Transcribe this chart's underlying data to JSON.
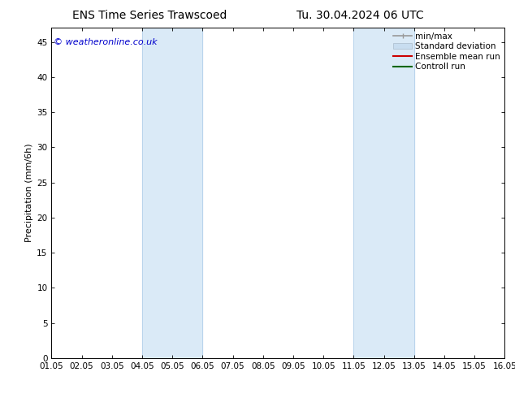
{
  "title_left": "ENS Time Series Trawscoed",
  "title_right": "Tu. 30.04.2024 06 UTC",
  "ylabel": "Precipitation (mm/6h)",
  "xlim": [
    0,
    15
  ],
  "ylim": [
    0,
    47
  ],
  "yticks": [
    0,
    5,
    10,
    15,
    20,
    25,
    30,
    35,
    40,
    45
  ],
  "xtick_labels": [
    "01.05",
    "02.05",
    "03.05",
    "04.05",
    "05.05",
    "06.05",
    "07.05",
    "08.05",
    "09.05",
    "10.05",
    "11.05",
    "12.05",
    "13.05",
    "14.05",
    "15.05",
    "16.05"
  ],
  "xtick_positions": [
    0,
    1,
    2,
    3,
    4,
    5,
    6,
    7,
    8,
    9,
    10,
    11,
    12,
    13,
    14,
    15
  ],
  "shaded_regions": [
    {
      "xmin": 3,
      "xmax": 5,
      "color": "#daeaf7"
    },
    {
      "xmin": 10,
      "xmax": 12,
      "color": "#daeaf7"
    }
  ],
  "vertical_lines": [
    {
      "x": 3,
      "color": "#b8d4ec",
      "lw": 0.7
    },
    {
      "x": 5,
      "color": "#b8d4ec",
      "lw": 0.7
    },
    {
      "x": 10,
      "color": "#b8d4ec",
      "lw": 0.7
    },
    {
      "x": 12,
      "color": "#b8d4ec",
      "lw": 0.7
    }
  ],
  "legend_entries": [
    {
      "label": "min/max",
      "color": "#999999",
      "lw": 1.2
    },
    {
      "label": "Standard deviation",
      "color": "#c8ddf0"
    },
    {
      "label": "Ensemble mean run",
      "color": "#cc0000",
      "lw": 1.2
    },
    {
      "label": "Controll run",
      "color": "#006600",
      "lw": 1.2
    }
  ],
  "watermark": "© weatheronline.co.uk",
  "watermark_color": "#0000cc",
  "bg_color": "#ffffff",
  "title_fontsize": 10,
  "ylabel_fontsize": 8,
  "tick_fontsize": 7.5,
  "legend_fontsize": 7.5,
  "watermark_fontsize": 8
}
